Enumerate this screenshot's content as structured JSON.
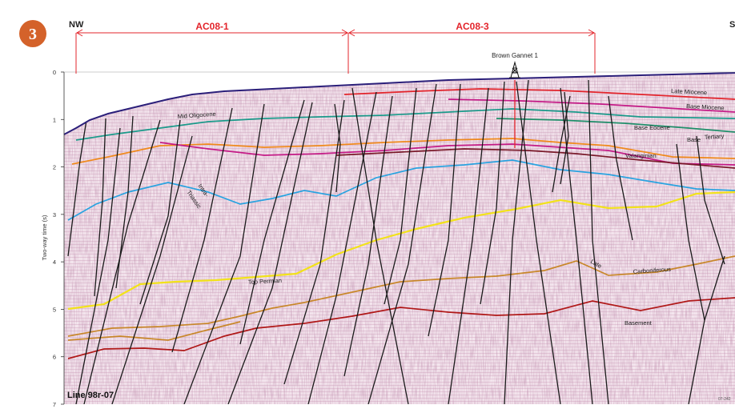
{
  "figure": {
    "number": "3",
    "orientation_left": "NW",
    "orientation_right": "S",
    "line_name": "Line 98r-07",
    "corner_code": "07-242",
    "badge_color": "#d4622a",
    "accent_color": "#e3242b"
  },
  "segments": [
    {
      "label": "AC08-1"
    },
    {
      "label": "AC08-3"
    }
  ],
  "well": {
    "name": "Brown Gannet 1",
    "icon": "oil-derrick-icon"
  },
  "axis": {
    "label": "Two-way time (s)",
    "ticks": [
      "0",
      "1",
      "2",
      "3",
      "4",
      "5",
      "6",
      "7"
    ]
  },
  "horizons": [
    {
      "name": "Late Miocene",
      "color": "#e3242b"
    },
    {
      "name": "Base Miocene",
      "color": "#c41a86"
    },
    {
      "name": "Mid Oligocene",
      "color": "#1a9a8a"
    },
    {
      "name": "Base Eocene",
      "color": "#1f8f6a"
    },
    {
      "name": "Base Tertiary",
      "color": "#f08a1c"
    },
    {
      "name": "Valanginian",
      "color": "#7a1a2a"
    },
    {
      "name": "Intra-Triassic",
      "color": "#29a3e0"
    },
    {
      "name": "Top Permian",
      "color": "#f2e21a"
    },
    {
      "name": "Late Carboniferous",
      "color": "#c8872a"
    },
    {
      "name": "Basement",
      "color": "#b01818"
    }
  ],
  "labels": {
    "late_miocene": "Late Miocene",
    "base_miocene": "Base Miocene",
    "mid_oligocene": "Mid Oligocene",
    "base_eocene": "Base Eocene",
    "base_tertiary_1": "Base",
    "base_tertiary_2": "Tertiary",
    "valanginian": "Valanginian",
    "intra_triassic_1": "Intra-",
    "intra_triassic_2": "Triassic",
    "top_permian": "Top Permian",
    "late_carboniferous_1": "Late",
    "late_carboniferous_2": "Carboniferous",
    "basement": "Basement"
  }
}
